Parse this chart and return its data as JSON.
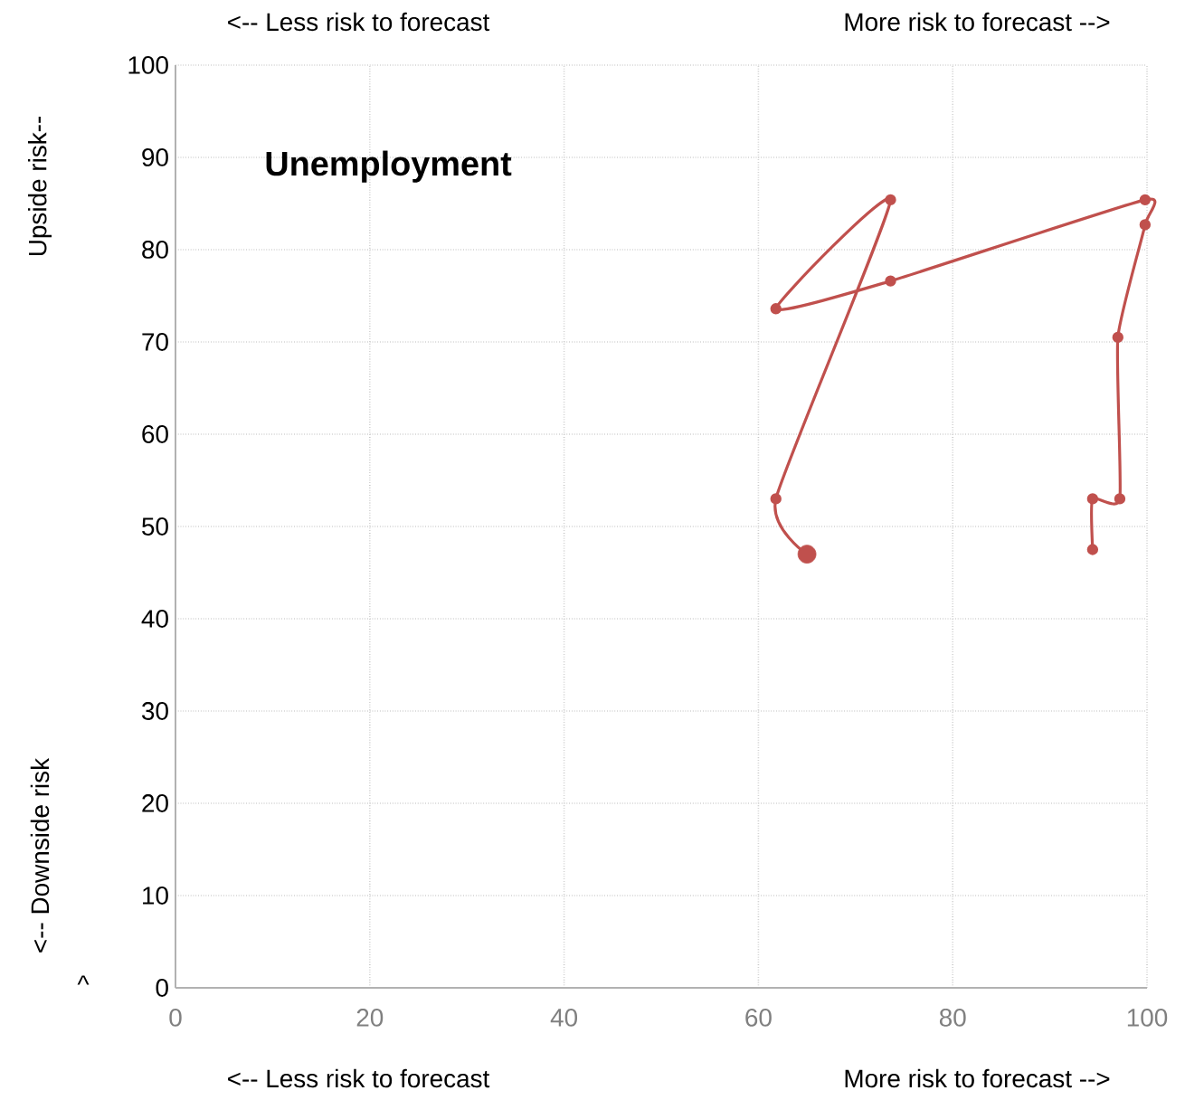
{
  "chart_data": {
    "type": "line",
    "title": "Unemployment",
    "annotations": [
      "<-- Less risk to forecast",
      "More risk to forecast -->",
      "<-- Less risk to forecast",
      "More risk to forecast -->",
      "Upside risk--",
      "<-- Downside risk",
      "^"
    ],
    "series": [
      {
        "color": "#c0504d",
        "x": [
          94.4,
          94.4,
          97.2,
          97.0,
          99.8,
          99.8,
          73.6,
          61.8,
          73.6,
          61.8,
          65.0
        ],
        "values": [
          47.5,
          53.0,
          53.0,
          70.5,
          82.7,
          85.4,
          76.6,
          73.6,
          85.4,
          53.0,
          47.0
        ]
      },
      {
        "type": "scatter",
        "color": "#c0504d",
        "x": [
          65.0
        ],
        "values": [
          47.0
        ]
      }
    ],
    "xlim": [
      0,
      100
    ],
    "ylim": [
      0,
      100
    ],
    "xticks": [
      0,
      20,
      40,
      60,
      80,
      100
    ],
    "yticks": [
      0,
      10,
      20,
      30,
      40,
      50,
      60,
      70,
      80,
      90,
      100
    ],
    "grid": true,
    "marker": "circle",
    "line_style": "solid"
  }
}
